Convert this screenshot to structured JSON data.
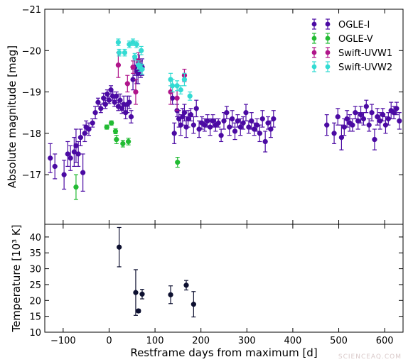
{
  "watermark": "SCIENCEAQ.COM",
  "chart_data": [
    {
      "type": "scatter",
      "title": "",
      "xlabel": "",
      "ylabel": "Absolute magnitude [mag]",
      "xlim": [
        -140,
        640
      ],
      "ylim": [
        -21,
        -15.8
      ],
      "y_inverted": true,
      "xticks": [
        -100,
        0,
        100,
        200,
        300,
        400,
        500,
        600
      ],
      "yticks": [
        -17,
        -18,
        -19,
        -20,
        -21
      ],
      "ytick_labels": [
        "−17",
        "−18",
        "−19",
        "−20",
        "−21"
      ],
      "legend_position": "top-right",
      "series": [
        {
          "name": "OGLE-I",
          "color": "#4b0aa3",
          "points": [
            [
              -128,
              -17.4,
              0.35
            ],
            [
              -118,
              -17.2,
              0.3
            ],
            [
              -98,
              -17.0,
              0.35
            ],
            [
              -90,
              -17.5,
              0.3
            ],
            [
              -84,
              -17.4,
              0.3
            ],
            [
              -76,
              -17.55,
              0.35
            ],
            [
              -72,
              -17.7,
              0.4
            ],
            [
              -67,
              -17.5,
              0.3
            ],
            [
              -62,
              -17.9,
              0.2
            ],
            [
              -57,
              -17.05,
              0.45
            ],
            [
              -53,
              -18.0,
              0.2
            ],
            [
              -50,
              -18.15,
              0.15
            ],
            [
              -44,
              -18.1,
              0.15
            ],
            [
              -36,
              -18.25,
              0.1
            ],
            [
              -30,
              -18.5,
              0.15
            ],
            [
              -24,
              -18.75,
              0.1
            ],
            [
              -18,
              -18.6,
              0.1
            ],
            [
              -12,
              -18.85,
              0.12
            ],
            [
              -8,
              -18.7,
              0.1
            ],
            [
              -4,
              -18.95,
              0.1
            ],
            [
              0,
              -18.8,
              0.08
            ],
            [
              4,
              -19.05,
              0.1
            ],
            [
              8,
              -18.9,
              0.1
            ],
            [
              12,
              -18.75,
              0.1
            ],
            [
              16,
              -18.9,
              0.1
            ],
            [
              20,
              -18.65,
              0.1
            ],
            [
              24,
              -18.8,
              0.15
            ],
            [
              28,
              -18.6,
              0.12
            ],
            [
              32,
              -18.7,
              0.2
            ],
            [
              36,
              -18.5,
              0.15
            ],
            [
              40,
              -18.7,
              0.2
            ],
            [
              44,
              -18.75,
              0.15
            ],
            [
              48,
              -18.4,
              0.15
            ],
            [
              52,
              -19.3,
              0.25
            ],
            [
              56,
              -19.6,
              0.2
            ],
            [
              60,
              -19.5,
              0.3
            ],
            [
              63,
              -19.45,
              0.25
            ],
            [
              66,
              -19.65,
              0.25
            ],
            [
              69,
              -19.55,
              0.2
            ],
            [
              72,
              -19.6,
              0.2
            ],
            [
              138,
              -18.85,
              0.15
            ],
            [
              142,
              -18.0,
              0.25
            ],
            [
              148,
              -18.55,
              0.15
            ],
            [
              152,
              -18.35,
              0.2
            ],
            [
              156,
              -18.2,
              0.25
            ],
            [
              160,
              -18.4,
              0.2
            ],
            [
              164,
              -18.5,
              0.2
            ],
            [
              168,
              -18.15,
              0.25
            ],
            [
              172,
              -18.35,
              0.2
            ],
            [
              178,
              -18.45,
              0.15
            ],
            [
              184,
              -18.2,
              0.2
            ],
            [
              190,
              -18.6,
              0.2
            ],
            [
              196,
              -18.1,
              0.2
            ],
            [
              202,
              -18.25,
              0.15
            ],
            [
              208,
              -18.2,
              0.15
            ],
            [
              214,
              -18.3,
              0.15
            ],
            [
              220,
              -18.15,
              0.2
            ],
            [
              226,
              -18.3,
              0.15
            ],
            [
              232,
              -18.2,
              0.15
            ],
            [
              238,
              -18.25,
              0.1
            ],
            [
              244,
              -17.95,
              0.15
            ],
            [
              250,
              -18.3,
              0.2
            ],
            [
              256,
              -18.5,
              0.15
            ],
            [
              262,
              -18.15,
              0.2
            ],
            [
              268,
              -18.35,
              0.2
            ],
            [
              274,
              -18.05,
              0.2
            ],
            [
              280,
              -18.3,
              0.15
            ],
            [
              286,
              -18.15,
              0.2
            ],
            [
              292,
              -18.25,
              0.15
            ],
            [
              298,
              -18.5,
              0.2
            ],
            [
              304,
              -18.15,
              0.15
            ],
            [
              310,
              -18.3,
              0.2
            ],
            [
              316,
              -18.1,
              0.15
            ],
            [
              322,
              -18.2,
              0.15
            ],
            [
              328,
              -18.0,
              0.2
            ],
            [
              334,
              -18.35,
              0.2
            ],
            [
              340,
              -17.8,
              0.25
            ],
            [
              346,
              -18.25,
              0.15
            ],
            [
              352,
              -18.1,
              0.2
            ],
            [
              358,
              -18.35,
              0.2
            ],
            [
              474,
              -18.2,
              0.25
            ],
            [
              490,
              -18.0,
              0.25
            ],
            [
              498,
              -18.4,
              0.2
            ],
            [
              506,
              -17.9,
              0.3
            ],
            [
              512,
              -18.15,
              0.2
            ],
            [
              518,
              -18.35,
              0.2
            ],
            [
              524,
              -18.25,
              0.2
            ],
            [
              530,
              -18.2,
              0.15
            ],
            [
              536,
              -18.5,
              0.15
            ],
            [
              542,
              -18.3,
              0.2
            ],
            [
              548,
              -18.45,
              0.2
            ],
            [
              554,
              -18.35,
              0.15
            ],
            [
              560,
              -18.65,
              0.15
            ],
            [
              566,
              -18.2,
              0.15
            ],
            [
              572,
              -18.5,
              0.2
            ],
            [
              578,
              -17.85,
              0.25
            ],
            [
              584,
              -18.4,
              0.2
            ],
            [
              590,
              -18.3,
              0.2
            ],
            [
              596,
              -18.45,
              0.15
            ],
            [
              602,
              -18.2,
              0.2
            ],
            [
              608,
              -18.35,
              0.15
            ],
            [
              614,
              -18.55,
              0.2
            ],
            [
              620,
              -18.5,
              0.15
            ],
            [
              626,
              -18.6,
              0.15
            ],
            [
              632,
              -18.3,
              0.2
            ]
          ]
        },
        {
          "name": "OGLE-V",
          "color": "#22bb33",
          "points": [
            [
              -72,
              -16.7,
              0.3
            ],
            [
              -5,
              -18.15,
              0.05
            ],
            [
              5,
              -18.25,
              0.05
            ],
            [
              14,
              -18.05,
              0.06
            ],
            [
              16,
              -17.85,
              0.1
            ],
            [
              30,
              -17.75,
              0.08
            ],
            [
              42,
              -17.8,
              0.08
            ],
            [
              149,
              -17.3,
              0.12
            ]
          ]
        },
        {
          "name": "Swift-UVW1",
          "color": "#b0158a",
          "points": [
            [
              20,
              -19.65,
              0.3
            ],
            [
              40,
              -19.2,
              0.2
            ],
            [
              52,
              -19.6,
              0.15
            ],
            [
              58,
              -19.0,
              0.3
            ],
            [
              64,
              -19.75,
              0.2
            ],
            [
              134,
              -19.0,
              0.3
            ],
            [
              148,
              -18.85,
              0.3
            ],
            [
              164,
              -19.4,
              0.15
            ]
          ]
        },
        {
          "name": "Swift-UVW2",
          "color": "#33dbd3",
          "points": [
            [
              20,
              -20.2,
              0.08
            ],
            [
              22,
              -19.95,
              0.08
            ],
            [
              34,
              -19.95,
              0.08
            ],
            [
              44,
              -20.15,
              0.08
            ],
            [
              52,
              -20.2,
              0.08
            ],
            [
              56,
              -19.85,
              0.08
            ],
            [
              60,
              -20.15,
              0.08
            ],
            [
              64,
              -19.65,
              0.1
            ],
            [
              67,
              -19.6,
              0.1
            ],
            [
              70,
              -20.0,
              0.1
            ],
            [
              72,
              -19.55,
              0.12
            ],
            [
              134,
              -19.3,
              0.15
            ],
            [
              138,
              -19.15,
              0.15
            ],
            [
              148,
              -19.15,
              0.12
            ],
            [
              156,
              -19.05,
              0.1
            ],
            [
              164,
              -19.3,
              0.15
            ],
            [
              176,
              -18.9,
              0.1
            ]
          ]
        }
      ]
    },
    {
      "type": "scatter",
      "title": "",
      "xlabel": "Restframe days from maximum [d]",
      "ylabel": "Temperature [10³ K]",
      "xlim": [
        -140,
        640
      ],
      "ylim": [
        10,
        44
      ],
      "xticks": [
        -100,
        0,
        100,
        200,
        300,
        400,
        500,
        600
      ],
      "xtick_labels": [
        "−100",
        "0",
        "100",
        "200",
        "300",
        "400",
        "500",
        "600"
      ],
      "yticks": [
        10,
        15,
        20,
        25,
        30,
        35,
        40
      ],
      "series": [
        {
          "color": "#0d1030",
          "points": [
            [
              22,
              36.8,
              6.2,
              0
            ],
            [
              58,
              22.5,
              7.2,
              0
            ],
            [
              64,
              16.7,
              0.5,
              3
            ],
            [
              72,
              22.0,
              1.5,
              0
            ],
            [
              134,
              21.8,
              2.8,
              0
            ],
            [
              168,
              24.8,
              1.5,
              0
            ],
            [
              184,
              18.8,
              4.0,
              0
            ]
          ]
        }
      ]
    }
  ]
}
